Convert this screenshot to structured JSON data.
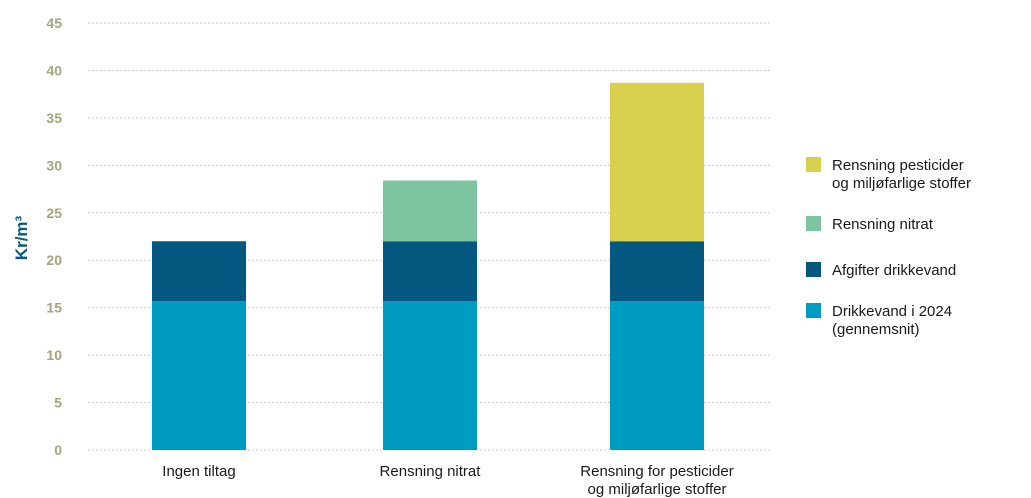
{
  "chart_data": {
    "type": "bar",
    "stacked": true,
    "title": "",
    "xlabel": "",
    "ylabel": "Kr/m³",
    "ylim": [
      0,
      45
    ],
    "yticks": [
      0,
      5,
      10,
      15,
      20,
      25,
      30,
      35,
      40,
      45
    ],
    "grid": true,
    "legend_position": "right",
    "categories": [
      [
        "Ingen tiltag"
      ],
      [
        "Rensning nitrat"
      ],
      [
        "Rensning for pesticider",
        "og miljøfarlige stoffer"
      ]
    ],
    "series": [
      {
        "name": [
          "Drikkevand i 2024",
          "(gennemsnit)"
        ],
        "color": "#009bc1",
        "values": [
          15.7,
          15.7,
          15.7
        ]
      },
      {
        "name": [
          "Afgifter drikkevand"
        ],
        "color": "#04577f",
        "values": [
          6.3,
          6.3,
          6.3
        ]
      },
      {
        "name": [
          "Rensning nitrat"
        ],
        "color": "#7cc4a0",
        "values": [
          0,
          6.4,
          0
        ]
      },
      {
        "name": [
          "Rensning pesticider",
          "og miljøfarlige stoffer"
        ],
        "color": "#d8cf4d",
        "values": [
          0,
          0,
          16.7
        ]
      }
    ]
  }
}
